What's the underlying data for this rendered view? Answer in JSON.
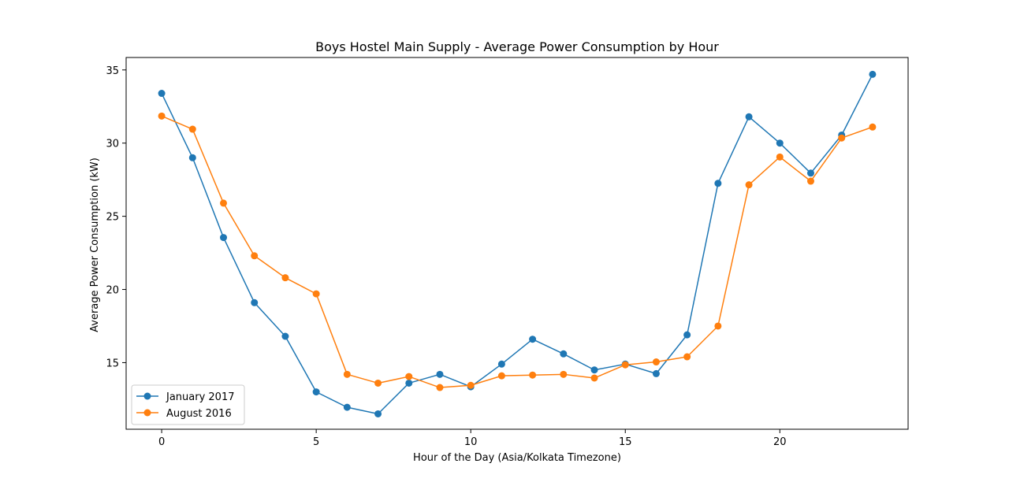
{
  "chart_data": {
    "type": "line",
    "title": "Boys Hostel Main Supply - Average Power Consumption by Hour",
    "xlabel": "Hour of the Day (Asia/Kolkata Timezone)",
    "ylabel": "Average Power Consumption (kW)",
    "x": [
      0,
      1,
      2,
      3,
      4,
      5,
      6,
      7,
      8,
      9,
      10,
      11,
      12,
      13,
      14,
      15,
      16,
      17,
      18,
      19,
      20,
      21,
      22,
      23
    ],
    "xlim": [
      -1.15,
      24.15
    ],
    "ylim": [
      10.45,
      35.85
    ],
    "xticks": [
      0,
      5,
      10,
      15,
      20
    ],
    "yticks": [
      15,
      20,
      25,
      30,
      35
    ],
    "grid": false,
    "legend_position": "lower-left",
    "series": [
      {
        "name": "January 2017",
        "color": "#1f77b4",
        "values": [
          33.4,
          29.0,
          23.55,
          19.1,
          16.8,
          13.0,
          11.95,
          11.5,
          13.6,
          14.2,
          13.35,
          14.9,
          16.6,
          15.6,
          14.5,
          14.9,
          14.25,
          16.9,
          27.25,
          31.8,
          30.0,
          27.95,
          30.55,
          34.7
        ]
      },
      {
        "name": "August 2016",
        "color": "#ff7f0e",
        "values": [
          31.85,
          30.95,
          25.9,
          22.3,
          20.8,
          19.7,
          14.2,
          13.6,
          14.05,
          13.3,
          13.45,
          14.1,
          14.15,
          14.2,
          13.95,
          14.85,
          15.05,
          15.4,
          17.5,
          27.15,
          29.05,
          27.4,
          30.35,
          31.1
        ]
      }
    ]
  }
}
